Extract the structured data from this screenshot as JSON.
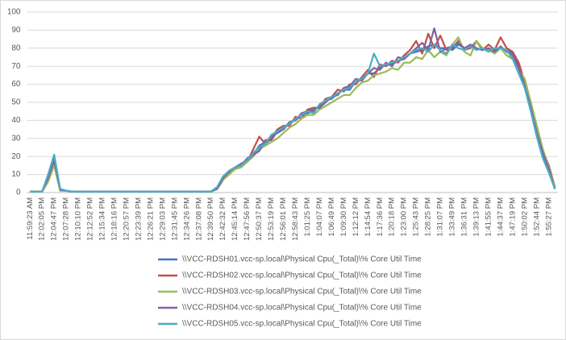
{
  "chart_data": {
    "type": "line",
    "categories": [
      "11:59:23 AM",
      null,
      "12:02:05 PM",
      null,
      "12:04:47 PM",
      null,
      "12:07:28 PM",
      null,
      "12:10:10 PM",
      null,
      "12:12:52 PM",
      null,
      "12:15:34 PM",
      null,
      "12:18:16 PM",
      null,
      "12:20:57 PM",
      null,
      "12:23:39 PM",
      null,
      "12:26:21 PM",
      null,
      "12:29:03 PM",
      null,
      "12:31:45 PM",
      null,
      "12:34:26 PM",
      null,
      "12:37:08 PM",
      null,
      "12:39:50 PM",
      null,
      "12:42:32 PM",
      null,
      "12:45:14 PM",
      null,
      "12:47:56 PM",
      null,
      "12:50:37 PM",
      null,
      "12:53:19 PM",
      null,
      "12:56:01 PM",
      null,
      "12:58:43 PM",
      null,
      "1:01:25 PM",
      null,
      "1:04:07 PM",
      null,
      "1:06:49 PM",
      null,
      "1:09:30 PM",
      null,
      "1:12:12 PM",
      null,
      "1:14:54 PM",
      null,
      "1:17:36 PM",
      null,
      "1:20:18 PM",
      null,
      "1:23:00 PM",
      null,
      "1:25:43 PM",
      null,
      "1:28:25 PM",
      null,
      "1:31:07 PM",
      null,
      "1:33:49 PM",
      null,
      "1:36:31 PM",
      null,
      "1:39:13 PM",
      null,
      "1:41:55 PM",
      null,
      "1:44:37 PM",
      null,
      "1:47:19 PM",
      null,
      "1:50:02 PM",
      null,
      "1:52:44 PM",
      null,
      "1:55:27 PM",
      null
    ],
    "series": [
      {
        "name": "\\\\VCC-RDSH01.vcc-sp.local\\Physical Cpu(_Total)\\% Core Util Time",
        "color": "#4472c4",
        "values": [
          0.5,
          0.5,
          0.5,
          9,
          19,
          1.5,
          1,
          0.5,
          0.5,
          0.5,
          0.5,
          0.5,
          0.5,
          0.5,
          0.5,
          0.5,
          0.5,
          0.5,
          0.5,
          0.5,
          0.5,
          0.5,
          0.5,
          0.5,
          0.5,
          0.5,
          0.5,
          0.5,
          0.5,
          0.5,
          0.5,
          3,
          8,
          11,
          14,
          15,
          19,
          21,
          26,
          28,
          31,
          33,
          35,
          39,
          40,
          43,
          44,
          45,
          48,
          51,
          52,
          55,
          57,
          57,
          62,
          63,
          66,
          66,
          69,
          71,
          71,
          73,
          74,
          77,
          78,
          79,
          81,
          82,
          80,
          80,
          79,
          82,
          80,
          81,
          80,
          79,
          80,
          78,
          80,
          79,
          77,
          70,
          58,
          47,
          33,
          21,
          12,
          2
        ]
      },
      {
        "name": "\\\\VCC-RDSH02.vcc-sp.local\\Physical Cpu(_Total)\\% Core Util Time",
        "color": "#c0504d",
        "values": [
          0.5,
          0.5,
          0.5,
          7,
          17,
          2,
          1,
          0.5,
          0.5,
          0.5,
          0.5,
          0.5,
          0.5,
          0.5,
          0.5,
          0.5,
          0.5,
          0.5,
          0.5,
          0.5,
          0.5,
          0.5,
          0.5,
          0.5,
          0.5,
          0.5,
          0.5,
          0.5,
          0.5,
          0.5,
          0.5,
          2,
          7,
          12,
          13,
          16,
          17,
          24,
          31,
          27,
          30,
          35,
          37,
          37,
          42,
          41,
          46,
          47,
          47,
          52,
          53,
          57,
          56,
          60,
          60,
          64,
          68,
          64,
          71,
          70,
          73,
          72,
          76,
          79,
          84,
          77,
          88,
          80,
          87,
          79,
          80,
          84,
          79,
          80,
          84,
          79,
          82,
          79,
          86,
          80,
          78,
          72,
          61,
          50,
          35,
          23,
          15,
          3
        ]
      },
      {
        "name": "\\\\VCC-RDSH03.vcc-sp.local\\Physical Cpu(_Total)\\% Core Util Time",
        "color": "#9bbb59",
        "values": [
          0.5,
          0.5,
          0.5,
          6,
          15,
          1,
          1,
          0.5,
          0.5,
          0.5,
          0.5,
          0.5,
          0.5,
          0.5,
          0.5,
          0.5,
          0.5,
          0.5,
          0.5,
          0.5,
          0.5,
          0.5,
          0.5,
          0.5,
          0.5,
          0.5,
          0.5,
          0.5,
          0.5,
          0.5,
          0.5,
          3,
          7,
          10,
          13,
          14,
          17,
          20,
          24,
          26,
          28,
          30,
          33,
          36,
          38,
          41,
          43,
          43,
          46,
          48,
          50,
          52,
          54,
          54,
          58,
          61,
          62,
          65,
          66,
          67,
          69,
          68,
          72,
          72,
          75,
          74,
          79,
          75,
          78,
          76,
          82,
          86,
          78,
          76,
          84,
          80,
          79,
          77,
          80,
          76,
          74,
          68,
          63,
          50,
          37,
          24,
          14,
          3
        ]
      },
      {
        "name": "\\\\VCC-RDSH04.vcc-sp.local\\Physical Cpu(_Total)\\% Core Util Time",
        "color": "#8064a2",
        "values": [
          0.5,
          0.5,
          0.5,
          8,
          18,
          1.5,
          1,
          0.5,
          0.5,
          0.5,
          0.5,
          0.5,
          0.5,
          0.5,
          0.5,
          0.5,
          0.5,
          0.5,
          0.5,
          0.5,
          0.5,
          0.5,
          0.5,
          0.5,
          0.5,
          0.5,
          0.5,
          0.5,
          0.5,
          0.5,
          0.5,
          2,
          8,
          12,
          14,
          16,
          18,
          21,
          23,
          29,
          29,
          34,
          35,
          39,
          40,
          44,
          45,
          46,
          47,
          50,
          53,
          54,
          58,
          59,
          63,
          62,
          66,
          69,
          68,
          72,
          70,
          75,
          74,
          77,
          80,
          83,
          79,
          91,
          78,
          80,
          81,
          83,
          80,
          82,
          80,
          79,
          80,
          78,
          81,
          78,
          76,
          69,
          59,
          47,
          33,
          22,
          13,
          2
        ]
      },
      {
        "name": "\\\\VCC-RDSH05.vcc-sp.local\\Physical Cpu(_Total)\\% Core Util Time",
        "color": "#4bacc6",
        "values": [
          0.5,
          0.5,
          0.5,
          10,
          21,
          2,
          1,
          0.5,
          0.5,
          0.5,
          0.5,
          0.5,
          0.5,
          0.5,
          0.5,
          0.5,
          0.5,
          0.5,
          0.5,
          0.5,
          0.5,
          0.5,
          0.5,
          0.5,
          0.5,
          0.5,
          0.5,
          0.5,
          0.5,
          0.5,
          0.5,
          3,
          9,
          12,
          14,
          15,
          18,
          22,
          25,
          27,
          32,
          34,
          36,
          38,
          41,
          43,
          45,
          44,
          49,
          51,
          53,
          55,
          57,
          58,
          62,
          63,
          66,
          77,
          70,
          71,
          72,
          73,
          75,
          77,
          79,
          80,
          78,
          82,
          79,
          77,
          82,
          80,
          79,
          81,
          79,
          80,
          78,
          80,
          80,
          79,
          74,
          66,
          58,
          45,
          31,
          19,
          11,
          2
        ]
      }
    ],
    "ylim": [
      0,
      100
    ],
    "yticks": [
      0,
      10,
      20,
      30,
      40,
      50,
      60,
      70,
      80,
      90,
      100
    ],
    "grid": true,
    "legend": "bottom"
  }
}
